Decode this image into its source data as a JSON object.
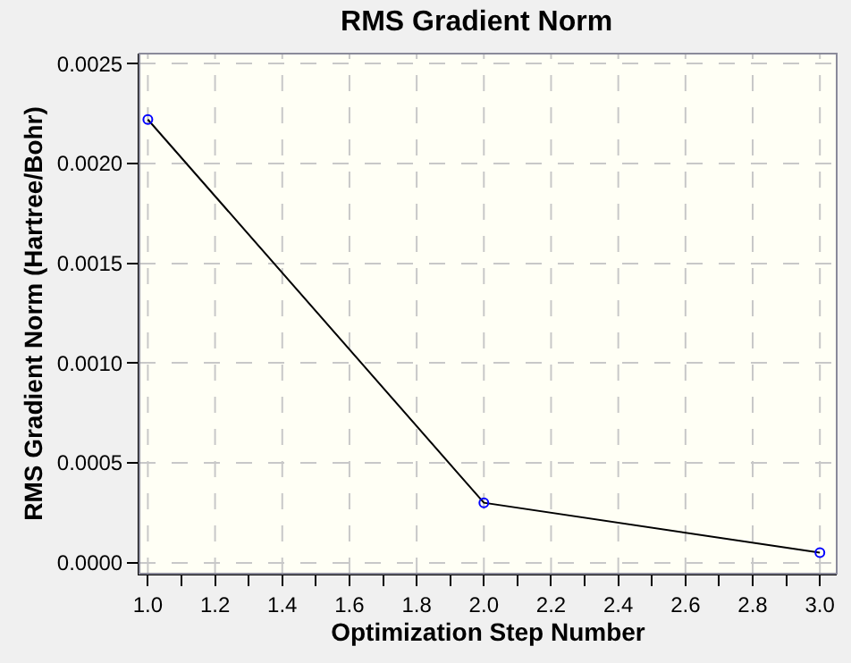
{
  "chart_data": {
    "type": "line",
    "title": "RMS Gradient Norm",
    "xlabel": "Optimization Step Number",
    "ylabel": "RMS Gradient Norm (Hartree/Bohr)",
    "x": [
      1.0,
      2.0,
      3.0
    ],
    "series": [
      {
        "color": "#000000",
        "values": [
          0.00222,
          0.0003,
          5e-05
        ]
      }
    ],
    "xlim": [
      0.975,
      3.05
    ],
    "ylim": [
      -5.5e-05,
      0.00255
    ],
    "xticks": [
      {
        "value": 1.0,
        "label": "1.0"
      },
      {
        "value": 1.1,
        "label": null
      },
      {
        "value": 1.2,
        "label": "1.2"
      },
      {
        "value": 1.3,
        "label": null
      },
      {
        "value": 1.4,
        "label": "1.4"
      },
      {
        "value": 1.5,
        "label": null
      },
      {
        "value": 1.6,
        "label": "1.6"
      },
      {
        "value": 1.7,
        "label": null
      },
      {
        "value": 1.8,
        "label": "1.8"
      },
      {
        "value": 1.9,
        "label": null
      },
      {
        "value": 2.0,
        "label": "2.0"
      },
      {
        "value": 2.1,
        "label": null
      },
      {
        "value": 2.2,
        "label": "2.2"
      },
      {
        "value": 2.3,
        "label": null
      },
      {
        "value": 2.4,
        "label": "2.4"
      },
      {
        "value": 2.5,
        "label": null
      },
      {
        "value": 2.6,
        "label": "2.6"
      },
      {
        "value": 2.7,
        "label": null
      },
      {
        "value": 2.8,
        "label": "2.8"
      },
      {
        "value": 2.9,
        "label": null
      },
      {
        "value": 3.0,
        "label": "3.0"
      }
    ],
    "yticks": [
      {
        "value": 0,
        "label": "0.0000"
      },
      {
        "value": 0.0005,
        "label": "0.0005"
      },
      {
        "value": 0.001,
        "label": "0.0010"
      },
      {
        "value": 0.0015,
        "label": "0.0015"
      },
      {
        "value": 0.002,
        "label": "0.0020"
      },
      {
        "value": 0.0025,
        "label": "0.0025"
      }
    ],
    "grid": true,
    "marker": "circle",
    "line_style": "solid",
    "legend": false
  }
}
